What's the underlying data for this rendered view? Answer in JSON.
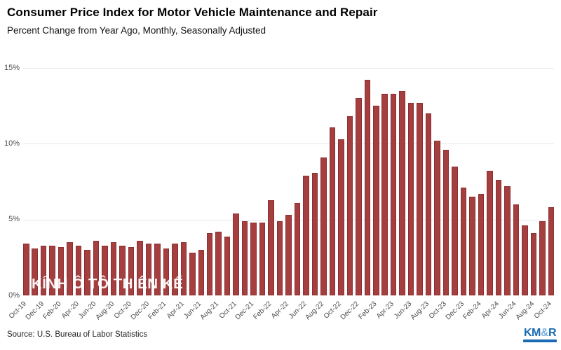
{
  "header": {
    "title": "Consumer Price Index for Motor Vehicle Maintenance and Repair",
    "subtitle": "Percent Change from Year Ago, Monthly, Seasonally Adjusted"
  },
  "chart_data": {
    "type": "bar",
    "x": [
      "Oct-19",
      "Nov-19",
      "Dec-19",
      "Jan-20",
      "Feb-20",
      "Mar-20",
      "Apr-20",
      "May-20",
      "Jun-20",
      "Jul-20",
      "Aug-20",
      "Sep-20",
      "Oct-20",
      "Nov-20",
      "Dec-20",
      "Jan-21",
      "Feb-21",
      "Mar-21",
      "Apr-21",
      "May-21",
      "Jun-21",
      "Jul-21",
      "Aug-21",
      "Sep-21",
      "Oct-21",
      "Nov-21",
      "Dec-21",
      "Jan-22",
      "Feb-22",
      "Mar-22",
      "Apr-22",
      "May-22",
      "Jun-22",
      "Jul-22",
      "Aug-22",
      "Sep-22",
      "Oct-22",
      "Nov-22",
      "Dec-22",
      "Jan-23",
      "Feb-23",
      "Mar-23",
      "Apr-23",
      "May-23",
      "Jun-23",
      "Jul-23",
      "Aug-23",
      "Sep-23",
      "Oct-23",
      "Nov-23",
      "Dec-23",
      "Jan-24",
      "Feb-24",
      "Mar-24",
      "Apr-24",
      "May-24",
      "Jun-24",
      "Jul-24",
      "Aug-24",
      "Sep-24",
      "Oct-24"
    ],
    "values": [
      3.4,
      3.1,
      3.3,
      3.3,
      3.2,
      3.5,
      3.3,
      3.0,
      3.6,
      3.3,
      3.5,
      3.3,
      3.2,
      3.6,
      3.4,
      3.4,
      3.1,
      3.4,
      3.5,
      2.8,
      3.0,
      4.1,
      4.2,
      3.9,
      5.4,
      4.9,
      4.8,
      4.8,
      6.3,
      4.9,
      5.3,
      6.1,
      7.9,
      8.1,
      9.1,
      11.1,
      10.3,
      11.8,
      13.0,
      14.2,
      12.5,
      13.3,
      13.3,
      13.5,
      12.7,
      12.7,
      12.0,
      10.2,
      9.6,
      8.5,
      7.1,
      6.5,
      6.7,
      8.2,
      7.6,
      7.2,
      6.0,
      4.6,
      4.1,
      4.9,
      5.8
    ],
    "x_tick_step": 2,
    "ylim": [
      0,
      15
    ],
    "yticks": [
      0,
      5,
      10,
      15
    ],
    "ytick_labels": [
      "0%",
      "5%",
      "10%",
      "15%"
    ],
    "grid": "horizontal",
    "legend": "none",
    "bar_color": "#a53e3f",
    "bar_border_color": "#8d2f31",
    "gridline_color": "#e7e7e7"
  },
  "watermark": {
    "text": "KÍNH Ô TÔ THIÊN KẾ"
  },
  "footer": {
    "source": "Source: U.S. Bureau of Labor Statistics"
  },
  "logo": {
    "text_km": "KM",
    "text_amp": "&",
    "text_r": "R",
    "color": "#1a6bb3",
    "amp_color": "#7fb2dd"
  }
}
